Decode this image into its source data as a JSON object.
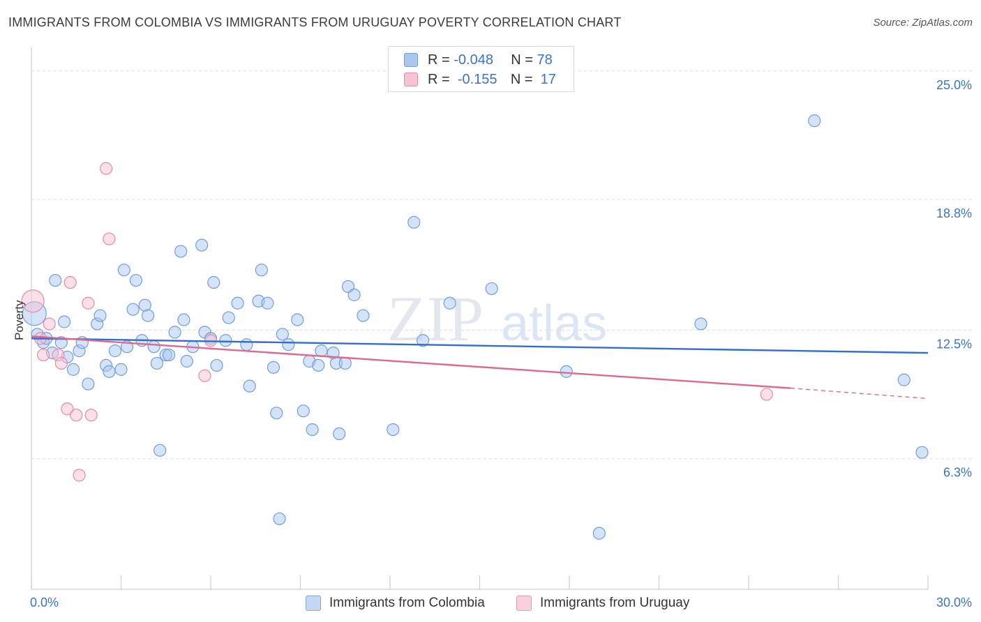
{
  "title": "IMMIGRANTS FROM COLOMBIA VS IMMIGRANTS FROM URUGUAY POVERTY CORRELATION CHART",
  "source": "Source: ZipAtlas.com",
  "watermark": {
    "zip": "ZIP",
    "atlas": "atlas"
  },
  "legend": {
    "r_label": "R =",
    "n_label": "N =",
    "rows": [
      {
        "r": "-0.048",
        "n": "78",
        "color": "#a9c8f0",
        "border": "#6f9fdc"
      },
      {
        "r": "-0.155",
        "n": "17",
        "color": "#f7c2d3",
        "border": "#e88aa8"
      }
    ]
  },
  "bottom_legend": [
    {
      "label": "Immigrants from Colombia",
      "color": "#c5d9f5",
      "border": "#7fa9e0"
    },
    {
      "label": "Immigrants from Uruguay",
      "color": "#f9d0dd",
      "border": "#e89ab4"
    }
  ],
  "chart_data": {
    "type": "scatter",
    "ylabel": "Poverty",
    "xlim": [
      0,
      30
    ],
    "ylim": [
      0,
      25.8
    ],
    "x_tick_labels": [
      "0.0%",
      "30.0%"
    ],
    "y_ticks": [
      {
        "value": 6.3,
        "label": "6.3%"
      },
      {
        "value": 12.5,
        "label": "12.5%"
      },
      {
        "value": 18.8,
        "label": "18.8%"
      },
      {
        "value": 25.0,
        "label": "25.0%"
      }
    ],
    "series": [
      {
        "name": "Immigrants from Colombia",
        "color": "#a9c8f0",
        "stroke": "#6f9fdc",
        "trend": {
          "x": [
            0,
            30
          ],
          "y": [
            12.1,
            11.4
          ],
          "color": "#2f6fcf"
        },
        "points": [
          [
            0.1,
            13.3
          ],
          [
            0.2,
            12.3
          ],
          [
            0.4,
            11.9
          ],
          [
            0.5,
            12.1
          ],
          [
            0.7,
            11.4
          ],
          [
            0.8,
            14.9
          ],
          [
            1.0,
            11.9
          ],
          [
            1.1,
            12.9
          ],
          [
            1.2,
            11.2
          ],
          [
            1.4,
            10.6
          ],
          [
            1.6,
            11.5
          ],
          [
            1.7,
            11.9
          ],
          [
            1.9,
            9.9
          ],
          [
            2.2,
            12.8
          ],
          [
            2.3,
            13.2
          ],
          [
            2.5,
            10.8
          ],
          [
            2.6,
            10.5
          ],
          [
            2.8,
            11.5
          ],
          [
            3.0,
            10.6
          ],
          [
            3.1,
            15.4
          ],
          [
            3.2,
            11.7
          ],
          [
            3.4,
            13.5
          ],
          [
            3.5,
            14.9
          ],
          [
            3.7,
            12.0
          ],
          [
            3.8,
            13.7
          ],
          [
            3.9,
            13.2
          ],
          [
            4.1,
            11.7
          ],
          [
            4.2,
            10.9
          ],
          [
            4.3,
            6.7
          ],
          [
            4.5,
            11.3
          ],
          [
            4.6,
            11.3
          ],
          [
            4.8,
            12.4
          ],
          [
            5.0,
            16.3
          ],
          [
            5.1,
            13.0
          ],
          [
            5.2,
            11.0
          ],
          [
            5.4,
            11.7
          ],
          [
            5.7,
            16.6
          ],
          [
            5.8,
            12.4
          ],
          [
            6.0,
            12.1
          ],
          [
            6.1,
            14.8
          ],
          [
            6.2,
            10.8
          ],
          [
            6.5,
            12.0
          ],
          [
            6.6,
            13.1
          ],
          [
            6.9,
            13.8
          ],
          [
            7.2,
            11.8
          ],
          [
            7.3,
            9.8
          ],
          [
            7.6,
            13.9
          ],
          [
            7.7,
            15.4
          ],
          [
            7.9,
            13.8
          ],
          [
            8.1,
            10.7
          ],
          [
            8.2,
            8.5
          ],
          [
            8.3,
            3.4
          ],
          [
            8.4,
            12.3
          ],
          [
            8.6,
            11.8
          ],
          [
            8.9,
            13.0
          ],
          [
            9.1,
            8.6
          ],
          [
            9.3,
            11.0
          ],
          [
            9.4,
            7.7
          ],
          [
            9.6,
            10.8
          ],
          [
            9.7,
            11.5
          ],
          [
            10.1,
            11.4
          ],
          [
            10.2,
            10.9
          ],
          [
            10.3,
            7.5
          ],
          [
            10.5,
            10.9
          ],
          [
            10.6,
            14.6
          ],
          [
            10.8,
            14.2
          ],
          [
            11.1,
            13.2
          ],
          [
            12.1,
            7.7
          ],
          [
            12.8,
            17.7
          ],
          [
            14.0,
            13.8
          ],
          [
            15.4,
            14.5
          ],
          [
            17.9,
            10.5
          ],
          [
            19.0,
            2.7
          ],
          [
            22.4,
            12.8
          ],
          [
            26.2,
            22.6
          ],
          [
            29.2,
            10.1
          ],
          [
            29.8,
            6.6
          ],
          [
            13.1,
            12.0
          ]
        ]
      },
      {
        "name": "Immigrants from Uruguay",
        "color": "#f7c2d3",
        "stroke": "#e88aa8",
        "trend": {
          "x": [
            0,
            25.4
          ],
          "y": [
            12.2,
            9.7
          ],
          "dashed_to": [
            30,
            9.2
          ],
          "color": "#e0688f"
        },
        "points": [
          [
            0.05,
            13.9
          ],
          [
            0.3,
            12.1
          ],
          [
            0.4,
            11.3
          ],
          [
            0.6,
            12.8
          ],
          [
            0.9,
            11.3
          ],
          [
            1.0,
            10.9
          ],
          [
            1.2,
            8.7
          ],
          [
            1.3,
            14.8
          ],
          [
            1.5,
            8.4
          ],
          [
            1.6,
            5.5
          ],
          [
            1.9,
            13.8
          ],
          [
            2.0,
            8.4
          ],
          [
            2.5,
            20.3
          ],
          [
            2.6,
            16.9
          ],
          [
            5.8,
            10.3
          ],
          [
            6.0,
            12.0
          ],
          [
            24.6,
            9.4
          ]
        ]
      }
    ]
  }
}
